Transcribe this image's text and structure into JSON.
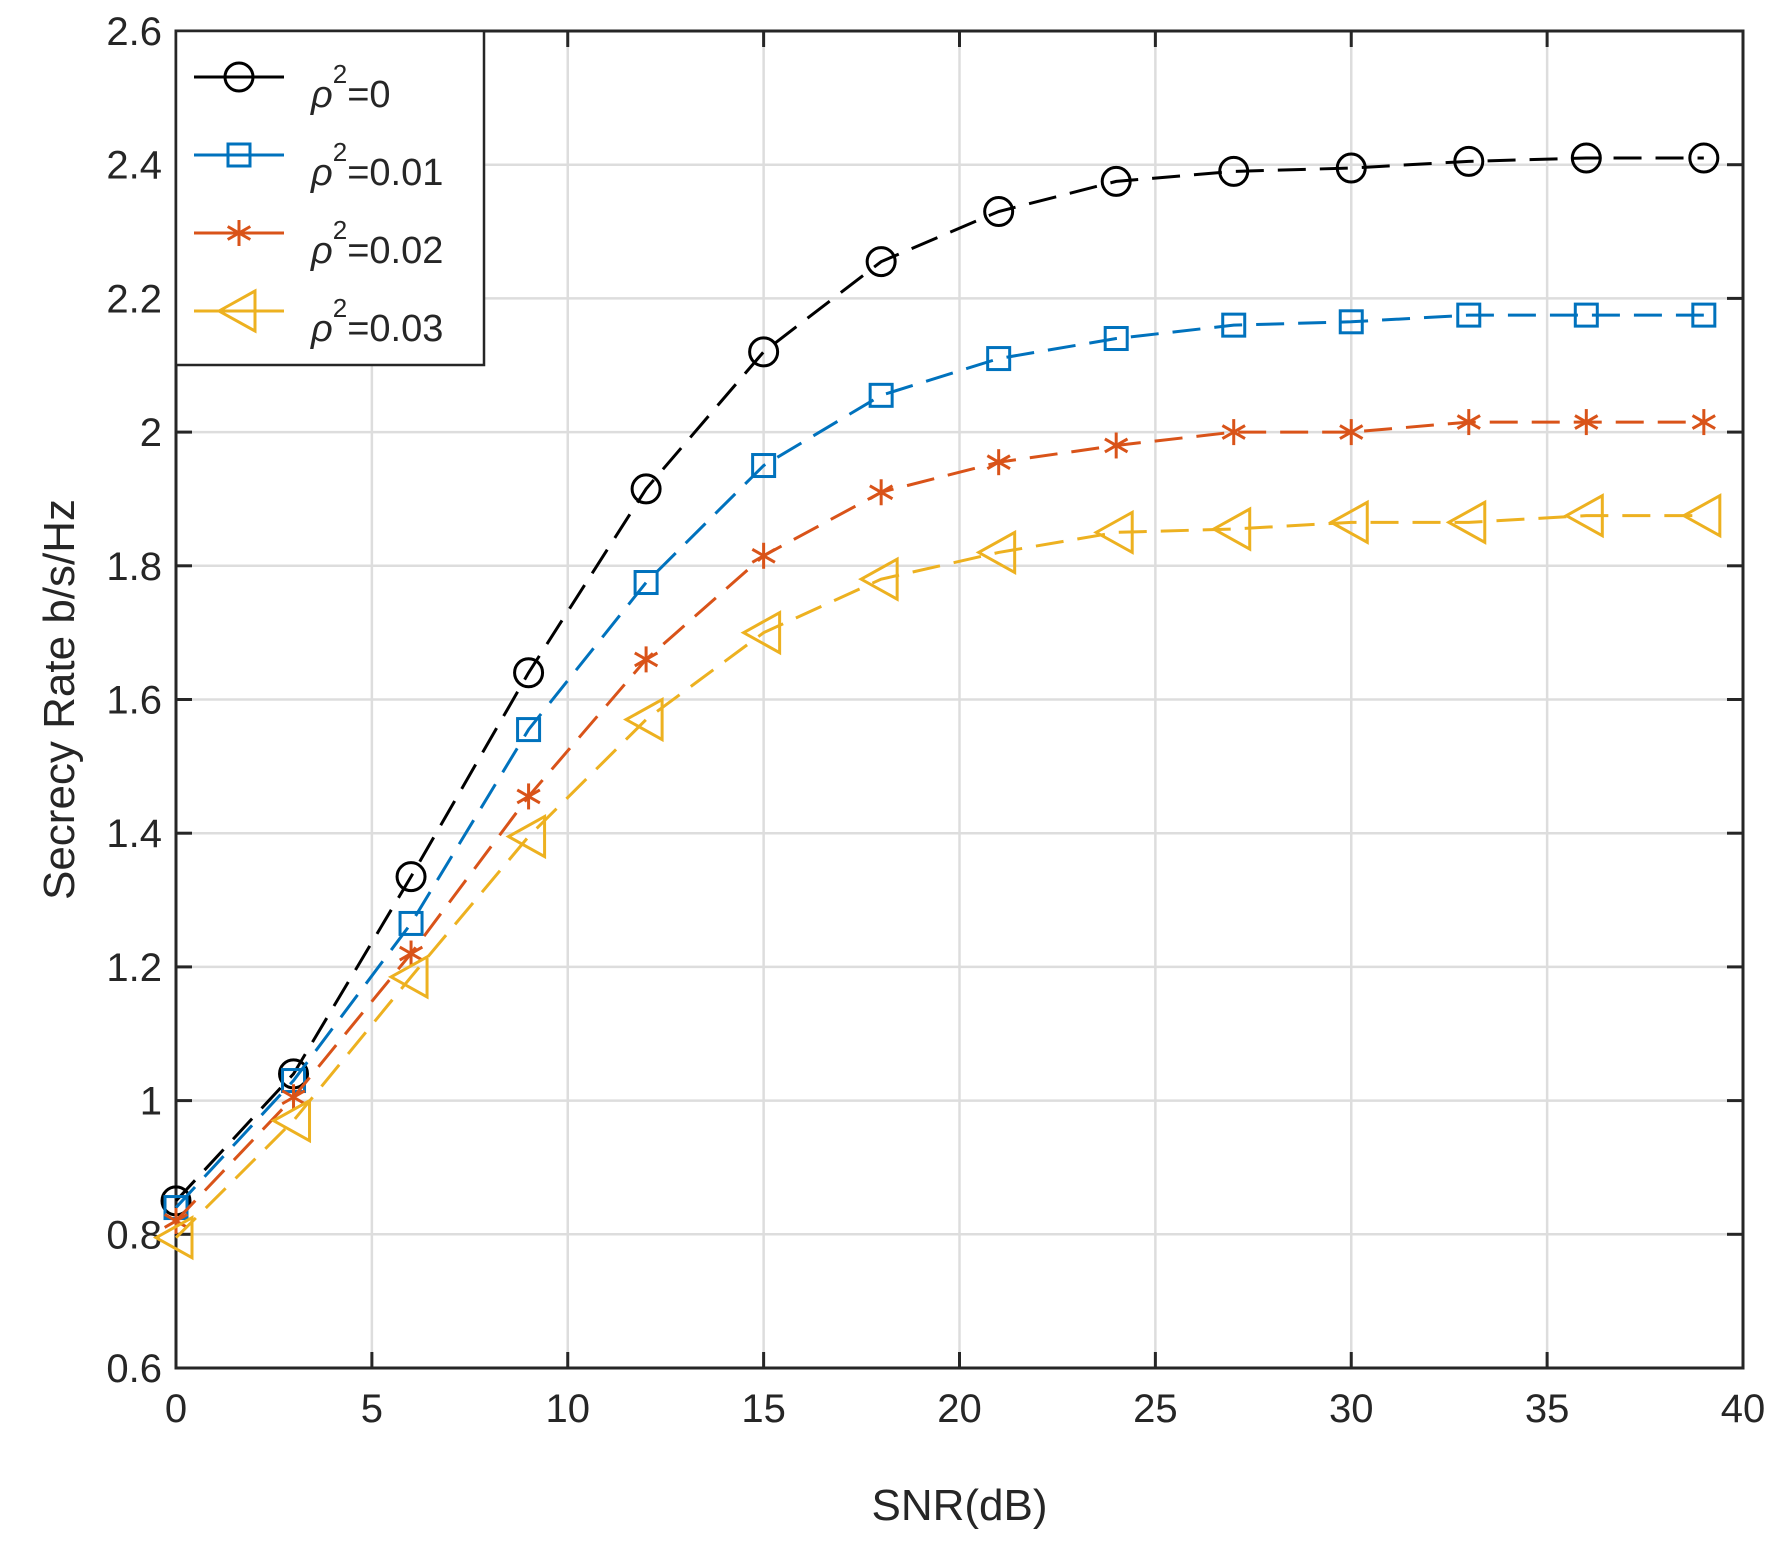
{
  "chart_data": {
    "type": "line",
    "title": "",
    "xlabel": "SNR(dB)",
    "ylabel": "Secrecy Rate b/s/Hz",
    "xlim": [
      0,
      40
    ],
    "ylim": [
      0.6,
      2.6
    ],
    "xticks": [
      0,
      5,
      10,
      15,
      20,
      25,
      30,
      35,
      40
    ],
    "yticks": [
      0.6,
      0.8,
      1,
      1.2,
      1.4,
      1.6,
      1.8,
      2,
      2.2,
      2.4,
      2.6
    ],
    "xtick_labels": [
      "0",
      "5",
      "10",
      "15",
      "20",
      "25",
      "30",
      "35",
      "40"
    ],
    "ytick_labels": [
      "0.6",
      "0.8",
      "1",
      "1.2",
      "1.4",
      "1.6",
      "1.8",
      "2",
      "2.2",
      "2.4",
      "2.6"
    ],
    "grid": true,
    "legend_position": "top-left",
    "x": [
      0,
      3,
      6,
      9,
      12,
      15,
      18,
      21,
      24,
      27,
      30,
      33,
      36,
      39
    ],
    "series": [
      {
        "name": "ρ2=0",
        "label_base": "ρ",
        "label_sup": "2",
        "label_rest": "=0",
        "color": "#000000",
        "marker": "circle",
        "values": [
          0.85,
          1.04,
          1.335,
          1.64,
          1.915,
          2.12,
          2.255,
          2.33,
          2.375,
          2.39,
          2.395,
          2.405,
          2.41,
          2.41
        ]
      },
      {
        "name": "ρ2=0.01",
        "label_base": "ρ",
        "label_sup": "2",
        "label_rest": "=0.01",
        "color": "#0072BD",
        "marker": "square",
        "values": [
          0.84,
          1.03,
          1.265,
          1.555,
          1.775,
          1.95,
          2.055,
          2.11,
          2.14,
          2.16,
          2.165,
          2.175,
          2.175,
          2.175
        ]
      },
      {
        "name": "ρ2=0.02",
        "label_base": "ρ",
        "label_sup": "2",
        "label_rest": "=0.02",
        "color": "#D95319",
        "marker": "asterisk",
        "values": [
          0.82,
          1.005,
          1.22,
          1.455,
          1.66,
          1.815,
          1.91,
          1.955,
          1.98,
          2.0,
          2.0,
          2.015,
          2.015,
          2.015
        ]
      },
      {
        "name": "ρ2=0.03",
        "label_base": "ρ",
        "label_sup": "2",
        "label_rest": "=0.03",
        "color": "#EDB120",
        "marker": "triangle-left",
        "values": [
          0.795,
          0.97,
          1.185,
          1.395,
          1.57,
          1.7,
          1.78,
          1.82,
          1.85,
          1.855,
          1.865,
          1.865,
          1.875,
          1.875
        ]
      }
    ]
  }
}
